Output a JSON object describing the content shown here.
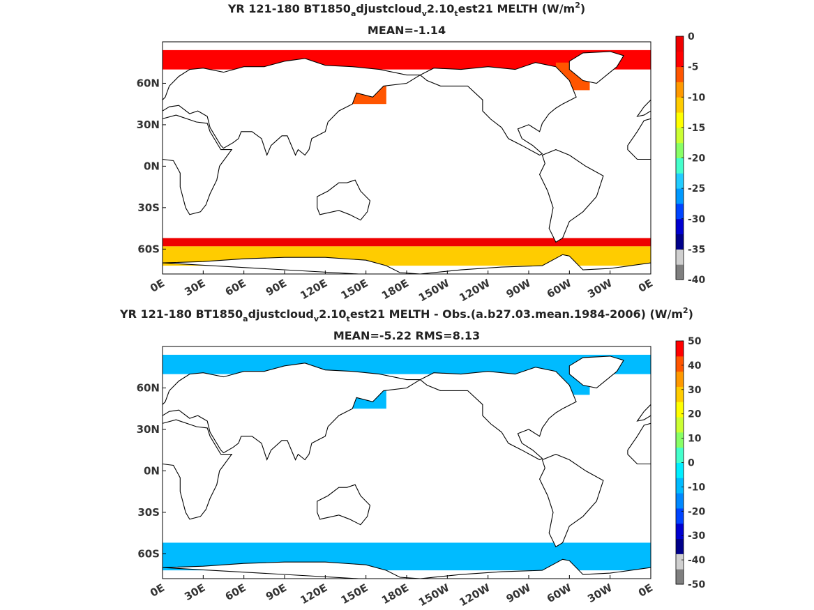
{
  "chart_data": [
    {
      "type": "heatmap",
      "title_parts": [
        "YR 121-180 BT1850",
        "a",
        "djustcloud",
        "v",
        "2.10",
        "t",
        "est21  MELTH (W/m",
        "2",
        ")"
      ],
      "subtitle": "MEAN=-1.14",
      "xlabel": "",
      "ylabel": "",
      "x_tick_labels": [
        "0E",
        "30E",
        "60E",
        "90E",
        "120E",
        "150E",
        "180E",
        "150W",
        "120W",
        "90W",
        "60W",
        "30W",
        "0E"
      ],
      "y_tick_labels": [
        "60N",
        "30N",
        "0N",
        "30S",
        "60S"
      ],
      "y_tick_values": [
        60,
        30,
        0,
        -30,
        -60
      ],
      "xlim": [
        0,
        360
      ],
      "ylim": [
        -78,
        90
      ],
      "colorbar": {
        "ticks": [
          "0",
          "-5",
          "-10",
          "-15",
          "-20",
          "-25",
          "-30",
          "-35",
          "-40"
        ],
        "range": [
          -40,
          0
        ],
        "colors": [
          "#7f7f7f",
          "#cfcfcf",
          "#00008a",
          "#0000d0",
          "#0044ff",
          "#0099ff",
          "#22ccff",
          "#44ffcc",
          "#88ff66",
          "#ccff33",
          "#ffff00",
          "#ffcc00",
          "#ff9900",
          "#ff5500",
          "#ff0000",
          "#ee0000"
        ]
      },
      "regions": [
        {
          "label": "arctic-rim",
          "lon": [
            0,
            360
          ],
          "lat": [
            70,
            84
          ],
          "value": -5
        },
        {
          "label": "north-pacific-okhotsk",
          "lon": [
            135,
            165
          ],
          "lat": [
            45,
            62
          ],
          "value": -6
        },
        {
          "label": "north-atlantic-labrador",
          "lon": [
            290,
            315
          ],
          "lat": [
            55,
            75
          ],
          "value": -7
        },
        {
          "label": "southern-ocean-edge",
          "lon": [
            0,
            360
          ],
          "lat": [
            -58,
            -52
          ],
          "value": -1
        },
        {
          "label": "southern-ocean-inner",
          "lon": [
            0,
            360
          ],
          "lat": [
            -72,
            -58
          ],
          "value": -11
        }
      ]
    },
    {
      "type": "heatmap",
      "title_parts": [
        "YR 121-180 BT1850",
        "a",
        "djustcloud",
        "v",
        "2.10",
        "t",
        "est21 MELTH - Obs.(a.b27.03.mean.1984-2006) (W/m",
        "2",
        ")"
      ],
      "subtitle": "MEAN=-5.22 RMS=8.13",
      "xlabel": "",
      "ylabel": "",
      "x_tick_labels": [
        "0E",
        "30E",
        "60E",
        "90E",
        "120E",
        "150E",
        "180E",
        "150W",
        "120W",
        "90W",
        "60W",
        "30W",
        "0E"
      ],
      "y_tick_labels": [
        "60N",
        "30N",
        "0N",
        "30S",
        "60S"
      ],
      "y_tick_values": [
        60,
        30,
        0,
        -30,
        -60
      ],
      "xlim": [
        0,
        360
      ],
      "ylim": [
        -78,
        90
      ],
      "colorbar": {
        "ticks": [
          "50",
          "40",
          "30",
          "20",
          "10",
          "0",
          "-10",
          "-20",
          "-30",
          "-40",
          "-50"
        ],
        "range": [
          -50,
          50
        ],
        "colors": [
          "#7f7f7f",
          "#cfcfcf",
          "#00008a",
          "#0000d0",
          "#0044ff",
          "#0088ff",
          "#00bbff",
          "#00eeff",
          "#44ffcc",
          "#88ff66",
          "#ccff33",
          "#ffff00",
          "#ffcc00",
          "#ff9900",
          "#ff5500",
          "#ff0000"
        ]
      },
      "regions": [
        {
          "label": "arctic-rim",
          "lon": [
            0,
            360
          ],
          "lat": [
            70,
            84
          ],
          "value": -8
        },
        {
          "label": "north-pacific-okhotsk",
          "lon": [
            135,
            165
          ],
          "lat": [
            45,
            62
          ],
          "value": -9
        },
        {
          "label": "north-atlantic-labrador",
          "lon": [
            290,
            315
          ],
          "lat": [
            55,
            75
          ],
          "value": -12
        },
        {
          "label": "southern-ocean",
          "lon": [
            0,
            360
          ],
          "lat": [
            -72,
            -52
          ],
          "value": -10
        }
      ]
    }
  ]
}
